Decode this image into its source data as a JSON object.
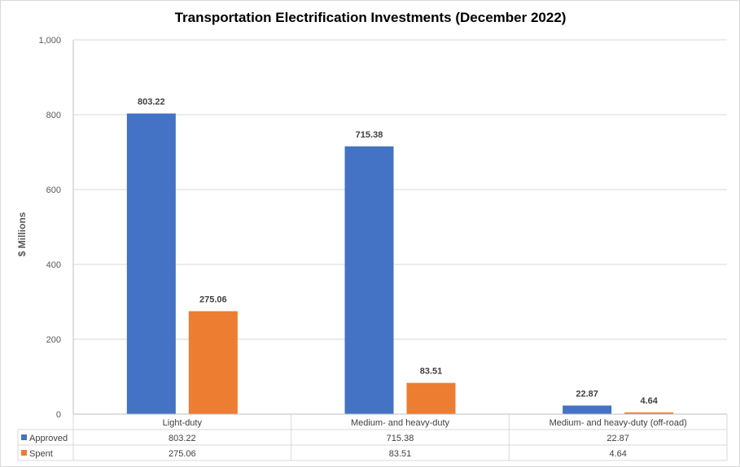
{
  "chart_data": {
    "type": "bar",
    "title": "Transportation Electrification Investments (December 2022)",
    "ylabel": "$ Millions",
    "xlabel": "",
    "ylim": [
      0,
      1000
    ],
    "yticks": [
      "0",
      "200",
      "400",
      "600",
      "800",
      "1,000"
    ],
    "ytick_values": [
      0,
      200,
      400,
      600,
      800,
      1000
    ],
    "categories": [
      "Light-duty",
      "Medium- and heavy-duty",
      "Medium- and heavy-duty (off-road)"
    ],
    "series": [
      {
        "name": "Approved",
        "color": "#4472c4",
        "values": [
          803.22,
          715.38,
          22.87
        ],
        "labels": [
          "803.22",
          "715.38",
          "22.87"
        ]
      },
      {
        "name": "Spent",
        "color": "#ed7d31",
        "values": [
          275.06,
          83.51,
          4.64
        ],
        "labels": [
          "275.06",
          "83.51",
          "4.64"
        ]
      }
    ],
    "grid": true,
    "legend": "data-table"
  }
}
